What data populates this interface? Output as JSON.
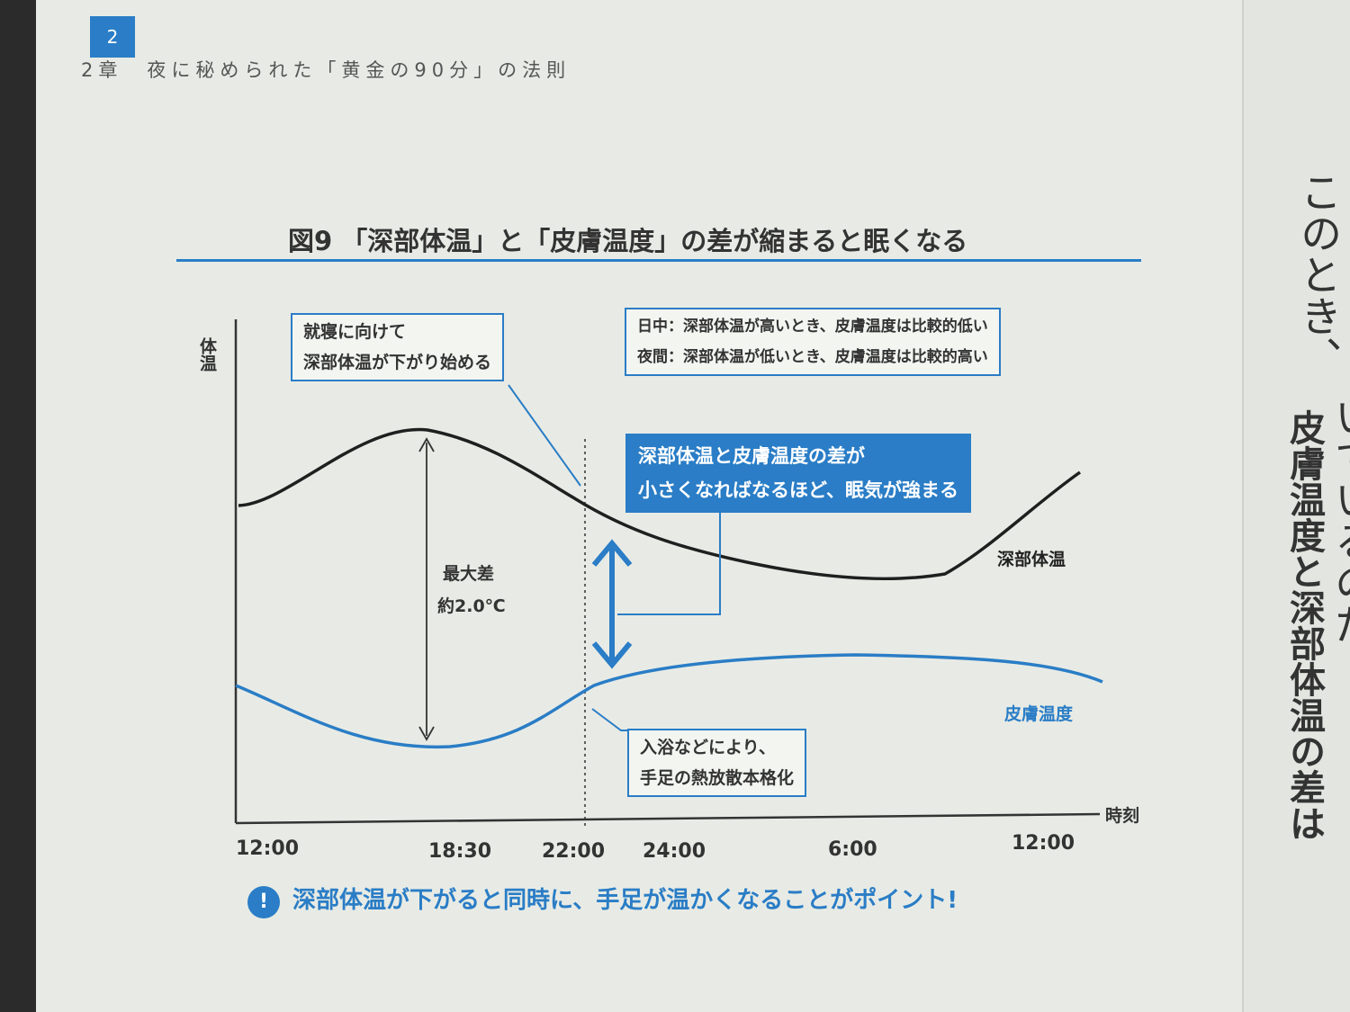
{
  "header": {
    "page_number": "2",
    "chapter": "2章　夜に秘められた「黄金の90分」の法則"
  },
  "figure": {
    "title": "図9 「深部体温」と「皮膚温度」の差が縮まると眠くなる",
    "y_label": "体温",
    "x_label": "時刻",
    "x_ticks": [
      "12:00",
      "18:30",
      "22:00",
      "24:00",
      "6:00",
      "12:00"
    ],
    "callout_bedtime": [
      "就寝に向けて",
      "深部体温が下がり始める"
    ],
    "callout_daynight": [
      "日中：深部体温が高いとき、皮膚温度は比較的低い",
      "夜間：深部体温が低いとき、皮膚温度は比較的高い"
    ],
    "callout_key": [
      "深部体温と皮膚温度の差が",
      "小さくなればなるほど、眠気が強まる"
    ],
    "callout_bath": [
      "入浴などにより、",
      "手足の熱放散本格化"
    ],
    "max_diff": [
      "最大差",
      "約2.0℃"
    ],
    "series_core_label": "深部体温",
    "series_skin_label": "皮膚温度",
    "colors": {
      "core": "#1f1f1f",
      "skin": "#2a7dc6",
      "accent": "#2a7dc6"
    }
  },
  "point_text": "深部体温が下がると同時に、手足が温かくなることがポイント!",
  "right_page": {
    "col1": "このとき、",
    "col2": "皮膚温度と深部体温の差は",
    "col3": "いているのだ。"
  }
}
